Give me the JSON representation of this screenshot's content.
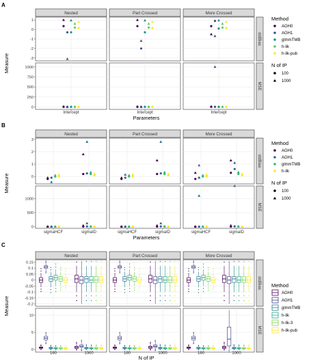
{
  "figure": {
    "panel_labels": [
      "A",
      "B",
      "C"
    ],
    "facet_columns": [
      "Nested",
      "Part Crossed",
      "More Crossed"
    ],
    "facet_rows": [
      "stdBias",
      "MSE"
    ]
  },
  "chart_data": [
    {
      "type": "scatter",
      "panel": "A",
      "xlabel": "Parameters",
      "ylabel": "Measure",
      "x_categories": [
        "Intercept"
      ],
      "methods": [
        "AGH0",
        "AGH1",
        "glmmTMB",
        "h-lik",
        "h-lik-pub"
      ],
      "method_colors": [
        "#440154",
        "#3b528b",
        "#21918c",
        "#5ec962",
        "#fde725"
      ],
      "legend_title": "Method",
      "legend2_title": "N of IP",
      "nip_levels": [
        "100",
        "1000"
      ],
      "nip_shapes": [
        "circle",
        "triangle"
      ],
      "stdBias_yticks": [
        -3,
        -2,
        -1,
        0,
        1
      ],
      "stdBias_ylim": [
        -3.3,
        1.3
      ],
      "MSE_yticks": [
        0,
        250,
        500,
        750,
        1000
      ],
      "MSE_ylim": [
        -60,
        1100
      ],
      "points": {
        "Nested": {
          "stdBias": {
            "100": {
              "Intercept": [
                0.35,
                -0.3,
                -0.3,
                0.2,
                0.15
              ]
            },
            "1000": {
              "Intercept": [
                1.0,
                -3.1,
                0.95,
                0.6,
                0.8
              ]
            }
          },
          "MSE": {
            "100": {
              "Intercept": [
                3,
                4,
                3,
                3,
                3
              ]
            },
            "1000": {
              "Intercept": [
                12,
                0,
                8,
                4,
                2
              ]
            }
          }
        },
        "Part Crossed": {
          "stdBias": {
            "100": {
              "Intercept": [
                0.35,
                -2.0,
                -0.3,
                0.2,
                0.15
              ]
            },
            "1000": {
              "Intercept": [
                1.0,
                -1.2,
                0.95,
                0.6,
                0.8
              ]
            }
          },
          "MSE": {
            "100": {
              "Intercept": [
                3,
                4,
                3,
                3,
                3
              ]
            },
            "1000": {
              "Intercept": [
                12,
                0,
                8,
                4,
                2
              ]
            }
          }
        },
        "More Crossed": {
          "stdBias": {
            "100": {
              "Intercept": [
                0.35,
                0.9,
                0.1,
                0.2,
                0.15
              ]
            },
            "1000": {
              "Intercept": [
                -0.5,
                -0.7,
                0.95,
                0.6,
                0.8
              ]
            }
          },
          "MSE": {
            "100": {
              "Intercept": [
                3,
                4,
                3,
                3,
                3
              ]
            },
            "1000": {
              "Intercept": [
                12,
                1000,
                8,
                4,
                2
              ]
            }
          }
        }
      }
    },
    {
      "type": "scatter",
      "panel": "B",
      "xlabel": "Parameters",
      "ylabel": "Measure",
      "x_categories": [
        "sigmaHCF",
        "sigmaID"
      ],
      "methods": [
        "AGH0",
        "AGH1",
        "glmmTMB",
        "h-lik"
      ],
      "method_colors": [
        "#440154",
        "#31688e",
        "#35b779",
        "#fde725"
      ],
      "legend_title": "Method",
      "legend2_title": "N of IP",
      "nip_levels": [
        "100",
        "1000"
      ],
      "nip_shapes": [
        "circle",
        "triangle"
      ],
      "stdBias_yticks": [
        0,
        1,
        2,
        3
      ],
      "stdBias_ylim": [
        -0.6,
        3.1
      ],
      "MSE_yticks": [
        0,
        500,
        1000
      ],
      "MSE_ylim": [
        -60,
        1450
      ],
      "points": {
        "Nested": {
          "stdBias": {
            "100": {
              "sigmaHCF": [
                -0.2,
                -0.1,
                0.0,
                0.0
              ],
              "sigmaID": [
                0.2,
                0.25,
                0.2,
                0.1
              ]
            },
            "1000": {
              "sigmaHCF": [
                -0.1,
                -0.45,
                0.1,
                0.15
              ],
              "sigmaID": [
                1.8,
                2.8,
                0.35,
                0.2
              ]
            }
          },
          "MSE": {
            "100": {
              "sigmaHCF": [
                2,
                2,
                2,
                2
              ],
              "sigmaID": [
                5,
                10,
                5,
                2
              ]
            },
            "1000": {
              "sigmaHCF": [
                2,
                2,
                2,
                2
              ],
              "sigmaID": [
                40,
                120,
                10,
                5
              ]
            }
          }
        },
        "Part Crossed": {
          "stdBias": {
            "100": {
              "sigmaHCF": [
                -0.2,
                -0.1,
                0.0,
                0.0
              ],
              "sigmaID": [
                0.2,
                0.25,
                0.2,
                0.1
              ]
            },
            "1000": {
              "sigmaHCF": [
                -0.1,
                0.15,
                0.1,
                0.15
              ],
              "sigmaID": [
                1.3,
                2.8,
                0.35,
                0.2
              ]
            }
          },
          "MSE": {
            "100": {
              "sigmaHCF": [
                2,
                2,
                2,
                2
              ],
              "sigmaID": [
                5,
                10,
                5,
                2
              ]
            },
            "1000": {
              "sigmaHCF": [
                2,
                2,
                2,
                2
              ],
              "sigmaID": [
                40,
                120,
                10,
                5
              ]
            }
          }
        },
        "More Crossed": {
          "stdBias": {
            "100": {
              "sigmaHCF": [
                -0.2,
                -0.1,
                0.0,
                0.0
              ],
              "sigmaID": [
                0.3,
                0.6,
                0.2,
                0.1
              ]
            },
            "1000": {
              "sigmaHCF": [
                0.3,
                0.9,
                0.1,
                0.15
              ],
              "sigmaID": [
                1.3,
                1.1,
                0.35,
                0.2
              ]
            }
          },
          "MSE": {
            "100": {
              "sigmaHCF": [
                2,
                2,
                2,
                2
              ],
              "sigmaID": [
                5,
                10,
                5,
                2
              ]
            },
            "1000": {
              "sigmaHCF": [
                2,
                1100,
                10,
                2
              ],
              "sigmaID": [
                40,
                1450,
                10,
                5
              ]
            }
          }
        }
      }
    },
    {
      "type": "box",
      "panel": "C",
      "xlabel": "N of IP",
      "ylabel": "Measure",
      "x_categories": [
        "100",
        "1000"
      ],
      "methods": [
        "AGH0",
        "AGH1",
        "glmmTMB",
        "h-lik",
        "h-lik-3",
        "h-lik-pub"
      ],
      "method_colors": [
        "#440154",
        "#414487",
        "#2a788e",
        "#22a884",
        "#7ad151",
        "#fde725"
      ],
      "legend_title": "Method",
      "stdBias_yticks": [
        -0.2,
        -0.15,
        -0.1,
        -0.05,
        0.0,
        0.05,
        0.1,
        0.15
      ],
      "stdBias_ylim": [
        -0.22,
        0.17
      ],
      "MSE_yticks": [
        0,
        5,
        10
      ],
      "MSE_ylim": [
        -0.8,
        12
      ],
      "stdBias_box": {
        "100": [
          {
            "q1": -0.02,
            "median": 0.0,
            "q3": 0.02,
            "lo": -0.06,
            "hi": 0.06
          },
          {
            "q1": 0.1,
            "median": 0.11,
            "q3": 0.12,
            "lo": 0.08,
            "hi": 0.14
          },
          {
            "q1": -0.01,
            "median": 0.01,
            "q3": 0.03,
            "lo": -0.06,
            "hi": 0.07
          },
          {
            "q1": 0.0,
            "median": 0.02,
            "q3": 0.04,
            "lo": -0.05,
            "hi": 0.09
          },
          {
            "q1": -0.01,
            "median": 0.01,
            "q3": 0.03,
            "lo": -0.05,
            "hi": 0.07
          },
          {
            "q1": -0.02,
            "median": 0.0,
            "q3": 0.02,
            "lo": -0.05,
            "hi": 0.06
          }
        ],
        "1000": [
          {
            "q1": -0.02,
            "median": 0.01,
            "q3": 0.04,
            "lo": -0.1,
            "hi": 0.12
          },
          {
            "q1": -0.03,
            "median": 0.0,
            "q3": 0.03,
            "lo": -0.2,
            "hi": 0.16
          },
          {
            "q1": -0.02,
            "median": 0.01,
            "q3": 0.03,
            "lo": -0.1,
            "hi": 0.12
          },
          {
            "q1": -0.02,
            "median": 0.0,
            "q3": 0.03,
            "lo": -0.1,
            "hi": 0.12
          },
          {
            "q1": -0.02,
            "median": 0.0,
            "q3": 0.03,
            "lo": -0.1,
            "hi": 0.12
          },
          {
            "q1": -0.02,
            "median": 0.0,
            "q3": 0.03,
            "lo": -0.1,
            "hi": 0.12
          }
        ]
      },
      "MSE_box": {
        "Nested": {
          "100": [
            {
              "q1": 0.3,
              "median": 0.5,
              "q3": 0.7,
              "lo": 0.1,
              "hi": 1.0
            },
            {
              "q1": 2.8,
              "median": 3.3,
              "q3": 3.8,
              "lo": 2.2,
              "hi": 4.4
            },
            {
              "q1": 0.2,
              "median": 0.4,
              "q3": 0.6,
              "lo": 0.05,
              "hi": 0.9
            },
            {
              "q1": 0.2,
              "median": 0.3,
              "q3": 0.5,
              "lo": 0.05,
              "hi": 0.8
            },
            {
              "q1": 0.2,
              "median": 0.3,
              "q3": 0.5,
              "lo": 0.05,
              "hi": 0.8
            },
            {
              "q1": 0.2,
              "median": 0.3,
              "q3": 0.5,
              "lo": 0.05,
              "hi": 0.8
            }
          ],
          "1000": [
            {
              "q1": 0.3,
              "median": 0.6,
              "q3": 0.9,
              "lo": 0.05,
              "hi": 1.5
            },
            {
              "q1": 0.6,
              "median": 0.9,
              "q3": 1.3,
              "lo": 0.1,
              "hi": 2.0
            },
            {
              "q1": 0.2,
              "median": 0.4,
              "q3": 0.6,
              "lo": 0.05,
              "hi": 1.0
            },
            {
              "q1": 0.2,
              "median": 0.3,
              "q3": 0.5,
              "lo": 0.05,
              "hi": 0.9
            },
            {
              "q1": 0.2,
              "median": 0.3,
              "q3": 0.5,
              "lo": 0.05,
              "hi": 0.9
            },
            {
              "q1": 0.2,
              "median": 0.3,
              "q3": 0.5,
              "lo": 0.05,
              "hi": 0.9
            }
          ]
        },
        "Part Crossed": {
          "100": [
            {
              "q1": 0.3,
              "median": 0.5,
              "q3": 0.7,
              "lo": 0.1,
              "hi": 1.0
            },
            {
              "q1": 2.8,
              "median": 3.3,
              "q3": 3.8,
              "lo": 2.2,
              "hi": 4.4
            },
            {
              "q1": 0.2,
              "median": 0.4,
              "q3": 0.6,
              "lo": 0.05,
              "hi": 0.9
            },
            {
              "q1": 0.2,
              "median": 0.3,
              "q3": 0.5,
              "lo": 0.05,
              "hi": 0.8
            },
            {
              "q1": 0.2,
              "median": 0.3,
              "q3": 0.5,
              "lo": 0.05,
              "hi": 0.8
            },
            {
              "q1": 0.2,
              "median": 0.3,
              "q3": 0.5,
              "lo": 0.05,
              "hi": 0.8
            }
          ],
          "1000": [
            {
              "q1": 0.3,
              "median": 0.6,
              "q3": 0.9,
              "lo": 0.05,
              "hi": 1.5
            },
            {
              "q1": 0.6,
              "median": 0.9,
              "q3": 1.3,
              "lo": 0.1,
              "hi": 2.0
            },
            {
              "q1": 0.2,
              "median": 0.4,
              "q3": 0.6,
              "lo": 0.05,
              "hi": 1.0
            },
            {
              "q1": 0.2,
              "median": 0.3,
              "q3": 0.5,
              "lo": 0.05,
              "hi": 0.9
            },
            {
              "q1": 0.2,
              "median": 0.3,
              "q3": 0.5,
              "lo": 0.05,
              "hi": 0.9
            },
            {
              "q1": 0.2,
              "median": 0.3,
              "q3": 0.5,
              "lo": 0.05,
              "hi": 0.9
            }
          ]
        },
        "More Crossed": {
          "100": [
            {
              "q1": 0.3,
              "median": 0.5,
              "q3": 0.7,
              "lo": 0.1,
              "hi": 1.0
            },
            {
              "q1": 2.8,
              "median": 3.3,
              "q3": 3.8,
              "lo": 2.2,
              "hi": 4.4
            },
            {
              "q1": 0.2,
              "median": 0.4,
              "q3": 0.6,
              "lo": 0.05,
              "hi": 0.9
            },
            {
              "q1": 0.2,
              "median": 0.3,
              "q3": 0.5,
              "lo": 0.05,
              "hi": 0.8
            },
            {
              "q1": 0.2,
              "median": 0.3,
              "q3": 0.5,
              "lo": 0.05,
              "hi": 0.8
            },
            {
              "q1": 0.2,
              "median": 0.3,
              "q3": 0.5,
              "lo": 0.05,
              "hi": 0.8
            }
          ],
          "1000": [
            {
              "q1": 0.3,
              "median": 0.6,
              "q3": 0.9,
              "lo": 0.05,
              "hi": 1.5
            },
            {
              "q1": 1.0,
              "median": 3.0,
              "q3": 6.5,
              "lo": 0.1,
              "hi": 11.5
            },
            {
              "q1": 0.2,
              "median": 0.4,
              "q3": 0.6,
              "lo": 0.05,
              "hi": 1.0
            },
            {
              "q1": 0.2,
              "median": 0.3,
              "q3": 0.5,
              "lo": 0.05,
              "hi": 0.9
            },
            {
              "q1": 0.2,
              "median": 0.3,
              "q3": 0.5,
              "lo": 0.05,
              "hi": 0.9
            },
            {
              "q1": 0.2,
              "median": 0.3,
              "q3": 0.5,
              "lo": 0.05,
              "hi": 0.9
            }
          ]
        }
      }
    }
  ]
}
